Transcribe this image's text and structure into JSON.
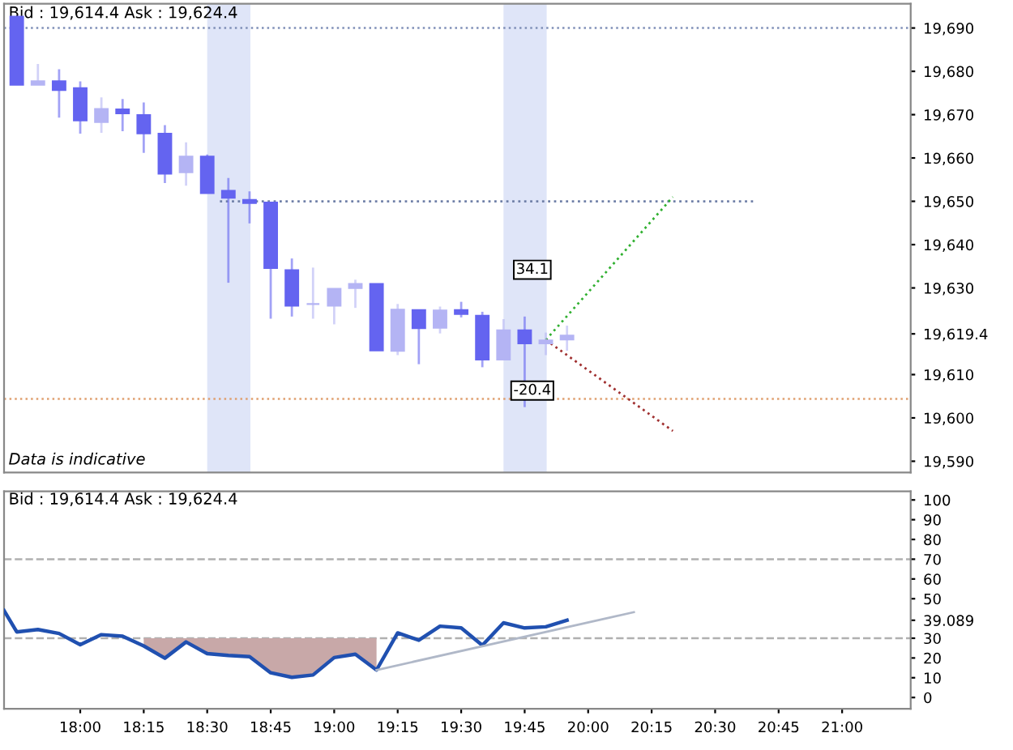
{
  "chart_data": [
    {
      "type": "candlestick",
      "title": "Bid : 19,614.4 Ask : 19,624.4",
      "x": [
        17.75,
        17.8333,
        17.9167,
        18.0,
        18.0833,
        18.1667,
        18.25,
        18.3333,
        18.4167,
        18.5,
        18.5833,
        18.6667,
        18.75,
        18.8333,
        18.9167,
        19.0,
        19.0833,
        19.1667,
        19.25,
        19.3333,
        19.4167,
        19.5,
        19.5833,
        19.6667,
        19.75,
        19.8333,
        19.9167
      ],
      "ohlc": [
        [
          19692.6,
          19692.6,
          19676.9,
          19676.9
        ],
        [
          19676.9,
          19681.7,
          19676.9,
          19677.7
        ],
        [
          19677.7,
          19680.5,
          19669.3,
          19675.7
        ],
        [
          19676.1,
          19677.7,
          19665.6,
          19668.7
        ],
        [
          19668.3,
          19674.0,
          19665.8,
          19671.3
        ],
        [
          19671.2,
          19673.6,
          19666.2,
          19670.3
        ],
        [
          19669.9,
          19672.8,
          19661.2,
          19665.7
        ],
        [
          19665.6,
          19667.6,
          19654.2,
          19656.4
        ],
        [
          19656.7,
          19663.6,
          19653.6,
          19660.3
        ],
        [
          19660.3,
          19660.8,
          19651.9,
          19651.9
        ],
        [
          19652.4,
          19655.4,
          19631.2,
          19650.8
        ],
        [
          19650.3,
          19652.3,
          19644.9,
          19649.6
        ],
        [
          19649.7,
          19649.7,
          19622.9,
          19634.6
        ],
        [
          19634.1,
          19636.8,
          19623.4,
          19625.9
        ],
        [
          19626.3,
          19634.7,
          19622.9,
          19626.3
        ],
        [
          19625.9,
          19629.8,
          19621.6,
          19629.8
        ],
        [
          19630.0,
          19631.9,
          19625.4,
          19630.9
        ],
        [
          19630.9,
          19630.9,
          19615.6,
          19615.6
        ],
        [
          19615.5,
          19626.3,
          19614.5,
          19625.0
        ],
        [
          19624.9,
          19624.9,
          19612.4,
          19620.7
        ],
        [
          19620.8,
          19625.7,
          19619.5,
          19624.8
        ],
        [
          19624.9,
          19626.8,
          19623.2,
          19624.0
        ],
        [
          19623.6,
          19624.5,
          19611.7,
          19613.5
        ],
        [
          19613.5,
          19622.8,
          19613.5,
          19620.2
        ],
        [
          19620.2,
          19623.4,
          19602.5,
          19617.2
        ],
        [
          19617.2,
          19619.7,
          19614.5,
          19617.9
        ],
        [
          19618.1,
          19621.3,
          19615.5,
          19619.0
        ]
      ],
      "colors": [
        "#6464f0",
        "#b4b4f4",
        "#6464f0",
        "#6464f0",
        "#b4b4f4",
        "#6464f0",
        "#6464f0",
        "#6464f0",
        "#b4b4f4",
        "#6464f0",
        "#6464f0",
        "#6464f0",
        "#6464f0",
        "#6464f0",
        "#b4b4f4",
        "#b4b4f4",
        "#b4b4f4",
        "#6464f0",
        "#b4b4f4",
        "#6464f0",
        "#b4b4f4",
        "#6464f0",
        "#6464f0",
        "#b4b4f4",
        "#6464f0",
        "#b4b4f4",
        "#b4b4f4"
      ],
      "series": [
        {
          "type": "line",
          "x": [
            18.55,
            20.65
          ],
          "values": [
            19650,
            19650
          ],
          "color": "#7080a8",
          "line_style": "dotted"
        },
        {
          "type": "line",
          "x": [
            19.8333,
            20.3333
          ],
          "values": [
            19618,
            19651
          ],
          "color": "#30b030",
          "line_style": "dotted"
        },
        {
          "type": "line",
          "x": [
            19.8333,
            20.3333
          ],
          "values": [
            19618,
            19597
          ],
          "color": "#a03030",
          "line_style": "dotted"
        }
      ],
      "ref_lines": [
        {
          "axis": "y",
          "value": 19690,
          "color": "#8090b8",
          "line_style": "dotted"
        },
        {
          "axis": "y",
          "value": 19604.4,
          "color": "#e0a070",
          "line_style": "dotted"
        }
      ],
      "bands": [
        {
          "axis": "x",
          "from": 18.5,
          "to": 18.67,
          "color": "#dfe5f8"
        },
        {
          "axis": "x",
          "from": 19.6667,
          "to": 19.8367,
          "color": "#dfe5f8"
        }
      ],
      "annotations": [
        {
          "text": "34.1",
          "x": 19.78,
          "y": 19634.2
        },
        {
          "text": "-20.4",
          "x": 19.78,
          "y": 19606.3
        },
        "Data is indicative"
      ],
      "xlim": [
        17.7,
        21.27
      ],
      "ylim": [
        19587.4,
        19695.6
      ],
      "yticks": [
        {
          "value": 19590,
          "label": "19,590"
        },
        {
          "value": 19600,
          "label": "19,600"
        },
        {
          "value": 19610,
          "label": "19,610"
        },
        {
          "value": 19619.4,
          "label": "19,619.4"
        },
        {
          "value": 19630,
          "label": "19,630"
        },
        {
          "value": 19640,
          "label": "19,640"
        },
        {
          "value": 19650,
          "label": "19,650"
        },
        {
          "value": 19660,
          "label": "19,660"
        },
        {
          "value": 19670,
          "label": "19,670"
        },
        {
          "value": 19680,
          "label": "19,680"
        },
        {
          "value": 19690,
          "label": "19,690"
        }
      ],
      "tick_labels": "y",
      "grid": false,
      "legend": false
    },
    {
      "type": "line",
      "title": "Bid : 19,614.4 Ask : 19,624.4",
      "series": [
        {
          "color": "#2050b0",
          "x": [
            17.7,
            17.75,
            17.8333,
            17.9167,
            18.0,
            18.0833,
            18.1667,
            18.25,
            18.3333,
            18.4167,
            18.5,
            18.5833,
            18.6667,
            18.75,
            18.8333,
            18.9167,
            19.0,
            19.0833,
            19.1667,
            19.25,
            19.3333,
            19.4167,
            19.5,
            19.5833,
            19.6667,
            19.75,
            19.8333,
            19.9167
          ],
          "values": [
            44.0,
            33.2,
            34.4,
            32.4,
            26.7,
            31.8,
            31.0,
            26.1,
            19.9,
            28.1,
            22.2,
            21.3,
            20.7,
            12.5,
            10.2,
            11.4,
            20.2,
            21.9,
            13.9,
            32.7,
            29.0,
            36.1,
            35.2,
            26.4,
            37.8,
            35.2,
            35.8,
            39.089
          ],
          "lower": [
            null,
            null,
            null,
            null,
            null,
            null,
            null,
            26.1,
            19.9,
            28.1,
            22.2,
            21.3,
            20.7,
            12.5,
            10.2,
            11.4,
            20.2,
            21.9,
            13.9,
            null,
            null,
            null,
            null,
            null,
            null,
            null,
            null,
            null
          ],
          "upper": [
            null,
            null,
            null,
            null,
            null,
            null,
            null,
            30,
            30,
            30,
            30,
            30,
            30,
            30,
            30,
            30,
            30,
            30,
            30,
            null,
            null,
            null,
            null,
            null,
            null,
            null,
            null,
            null
          ]
        },
        {
          "color": "#b0b8c8",
          "x": [
            19.1667,
            20.18
          ],
          "values": [
            13.9,
            43.2
          ]
        }
      ],
      "ref_lines": [
        {
          "axis": "y",
          "value": 30,
          "color": "#b0b0b0",
          "line_style": "dashed"
        },
        {
          "axis": "y",
          "value": 70,
          "color": "#b0b0b0",
          "line_style": "dashed"
        }
      ],
      "xlim": [
        17.7,
        21.27
      ],
      "ylim": [
        -5.7,
        104.4
      ],
      "xticks": [
        {
          "value": 18,
          "label": "18:00"
        },
        {
          "value": 18.25,
          "label": "18:15"
        },
        {
          "value": 18.5,
          "label": "18:30"
        },
        {
          "value": 18.75,
          "label": "18:45"
        },
        {
          "value": 19,
          "label": "19:00"
        },
        {
          "value": 19.25,
          "label": "19:15"
        },
        {
          "value": 19.5,
          "label": "19:30"
        },
        {
          "value": 19.75,
          "label": "19:45"
        },
        {
          "value": 20,
          "label": "20:00"
        },
        {
          "value": 20.25,
          "label": "20:15"
        },
        {
          "value": 20.5,
          "label": "20:30"
        },
        {
          "value": 20.75,
          "label": "20:45"
        },
        {
          "value": 21,
          "label": "21:00"
        }
      ],
      "yticks": [
        0,
        10,
        20,
        30,
        {
          "value": 39.089,
          "label": "39.089"
        },
        50,
        60,
        70,
        80,
        90,
        100
      ],
      "grid": false,
      "legend": false,
      "marker": "none",
      "line_style": "solid"
    }
  ]
}
